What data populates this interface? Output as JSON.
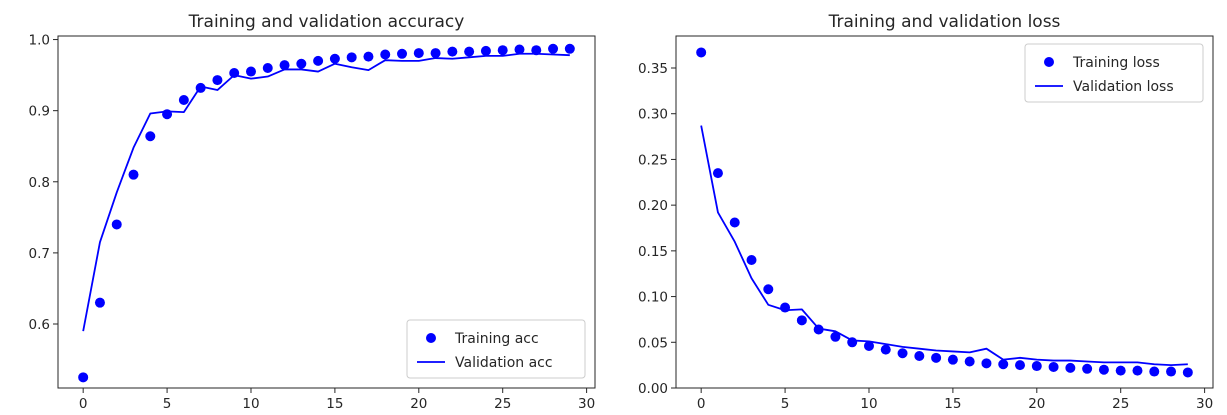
{
  "chart_data": [
    {
      "type": "line",
      "title": "Training and validation accuracy",
      "xlabel": "",
      "ylabel": "",
      "xlim": [
        -1.5,
        30.5
      ],
      "ylim": [
        0.51,
        1.005
      ],
      "xticks": [
        0,
        5,
        10,
        15,
        20,
        25,
        30
      ],
      "yticks": [
        0.6,
        0.7,
        0.8,
        0.9,
        1.0
      ],
      "ytick_labels": [
        "0.6",
        "0.7",
        "0.8",
        "0.9",
        "1.0"
      ],
      "legend_position": "lower-right",
      "grid": false,
      "x": [
        0,
        1,
        2,
        3,
        4,
        5,
        6,
        7,
        8,
        9,
        10,
        11,
        12,
        13,
        14,
        15,
        16,
        17,
        18,
        19,
        20,
        21,
        22,
        23,
        24,
        25,
        26,
        27,
        28,
        29
      ],
      "series": [
        {
          "name": "Training acc",
          "style": "dots",
          "color": "#0000ff",
          "values": [
            0.525,
            0.63,
            0.74,
            0.81,
            0.864,
            0.895,
            0.915,
            0.932,
            0.943,
            0.953,
            0.955,
            0.96,
            0.964,
            0.966,
            0.97,
            0.973,
            0.975,
            0.976,
            0.979,
            0.98,
            0.981,
            0.981,
            0.983,
            0.983,
            0.984,
            0.985,
            0.986,
            0.985,
            0.987,
            0.987
          ]
        },
        {
          "name": "Validation acc",
          "style": "line",
          "color": "#0000ff",
          "values": [
            0.59,
            0.715,
            0.785,
            0.848,
            0.896,
            0.899,
            0.898,
            0.934,
            0.929,
            0.95,
            0.945,
            0.948,
            0.958,
            0.958,
            0.955,
            0.966,
            0.961,
            0.957,
            0.971,
            0.97,
            0.97,
            0.974,
            0.973,
            0.975,
            0.977,
            0.977,
            0.98,
            0.98,
            0.979,
            0.978
          ]
        }
      ]
    },
    {
      "type": "line",
      "title": "Training and validation loss",
      "xlabel": "",
      "ylabel": "",
      "xlim": [
        -1.5,
        30.5
      ],
      "ylim": [
        0.0,
        0.385
      ],
      "xticks": [
        0,
        5,
        10,
        15,
        20,
        25,
        30
      ],
      "yticks": [
        0.0,
        0.05,
        0.1,
        0.15,
        0.2,
        0.25,
        0.3,
        0.35
      ],
      "ytick_labels": [
        "0.00",
        "0.05",
        "0.10",
        "0.15",
        "0.20",
        "0.25",
        "0.30",
        "0.35"
      ],
      "legend_position": "upper-right",
      "grid": false,
      "x": [
        0,
        1,
        2,
        3,
        4,
        5,
        6,
        7,
        8,
        9,
        10,
        11,
        12,
        13,
        14,
        15,
        16,
        17,
        18,
        19,
        20,
        21,
        22,
        23,
        24,
        25,
        26,
        27,
        28,
        29
      ],
      "series": [
        {
          "name": "Training loss",
          "style": "dots",
          "color": "#0000ff",
          "values": [
            0.367,
            0.235,
            0.181,
            0.14,
            0.108,
            0.088,
            0.074,
            0.064,
            0.056,
            0.05,
            0.046,
            0.042,
            0.038,
            0.035,
            0.033,
            0.031,
            0.029,
            0.027,
            0.026,
            0.025,
            0.024,
            0.023,
            0.022,
            0.021,
            0.02,
            0.019,
            0.019,
            0.018,
            0.018,
            0.017
          ]
        },
        {
          "name": "Validation loss",
          "style": "line",
          "color": "#0000ff",
          "values": [
            0.287,
            0.192,
            0.16,
            0.12,
            0.091,
            0.085,
            0.086,
            0.065,
            0.062,
            0.052,
            0.051,
            0.048,
            0.045,
            0.043,
            0.041,
            0.04,
            0.039,
            0.043,
            0.031,
            0.033,
            0.031,
            0.03,
            0.03,
            0.029,
            0.028,
            0.028,
            0.028,
            0.026,
            0.025,
            0.026
          ]
        }
      ]
    }
  ]
}
